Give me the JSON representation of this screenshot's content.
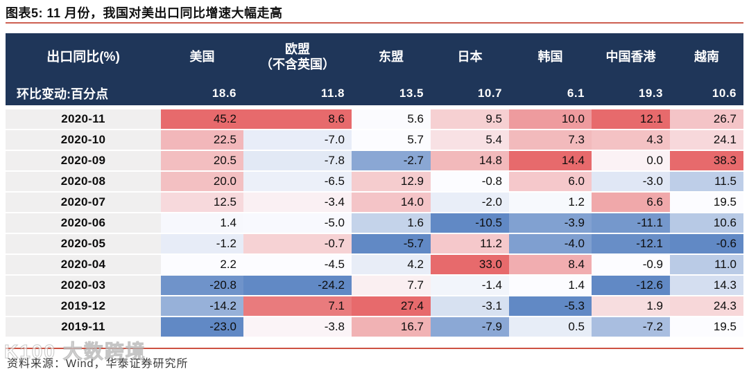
{
  "title": "图表5:  11 月份，我国对美出口同比增速大幅走高",
  "source": "资料来源：Wind，华泰证券研究所",
  "watermark": "K100 大数跨境",
  "colors": {
    "header_bg": "#1f3659",
    "date_column_bg": "#f0efef",
    "accent_line": "#cd5141"
  },
  "chart_data": {
    "type": "heatmap",
    "title": "图表5:  11 月份，我国对美出口同比增速大幅走高",
    "corner_label": "出口同比(%)",
    "mom_label": "环比变动:百分点",
    "columns": [
      "美国",
      "欧盟\n（不含英国）",
      "东盟",
      "日本",
      "韩国",
      "中国香港",
      "越南"
    ],
    "mom_change": [
      18.6,
      11.8,
      13.5,
      10.7,
      6.1,
      19.3,
      10.6
    ],
    "rows": [
      {
        "period": "2020-11",
        "values": [
          45.2,
          8.6,
          5.6,
          9.5,
          10.0,
          12.1,
          26.7
        ]
      },
      {
        "period": "2020-10",
        "values": [
          22.5,
          -7.0,
          5.7,
          5.4,
          7.3,
          4.3,
          24.1
        ]
      },
      {
        "period": "2020-09",
        "values": [
          20.5,
          -7.8,
          -2.7,
          14.8,
          14.4,
          0.0,
          38.3
        ]
      },
      {
        "period": "2020-08",
        "values": [
          20.0,
          -6.5,
          12.9,
          -0.8,
          6.0,
          -3.0,
          11.5
        ]
      },
      {
        "period": "2020-07",
        "values": [
          12.5,
          -3.4,
          14.0,
          -2.0,
          1.2,
          6.6,
          19.5
        ]
      },
      {
        "period": "2020-06",
        "values": [
          1.4,
          -5.0,
          1.6,
          -10.5,
          -3.9,
          -11.1,
          10.6
        ]
      },
      {
        "period": "2020-05",
        "values": [
          -1.2,
          -0.7,
          -5.7,
          11.2,
          -4.0,
          -12.1,
          -0.6
        ]
      },
      {
        "period": "2020-04",
        "values": [
          2.2,
          -4.5,
          4.2,
          33.0,
          8.4,
          -0.9,
          11.0
        ]
      },
      {
        "period": "2020-03",
        "values": [
          -20.8,
          -24.2,
          7.7,
          -1.4,
          1.4,
          -12.6,
          14.3
        ]
      },
      {
        "period": "2019-12",
        "values": [
          -14.2,
          7.1,
          27.4,
          -3.1,
          -5.3,
          1.9,
          24.3
        ]
      },
      {
        "period": "2019-11",
        "values": [
          -23.0,
          -3.8,
          16.7,
          -7.9,
          0.5,
          -7.2,
          19.5
        ]
      }
    ],
    "colorscale": {
      "min_color": "#6189c5",
      "mid_color": "#fcfcff",
      "max_color": "#e76a6c",
      "midpoint": "per-column median",
      "note": "3-color scale applied per column: min=blue, median=white, max=red"
    }
  }
}
